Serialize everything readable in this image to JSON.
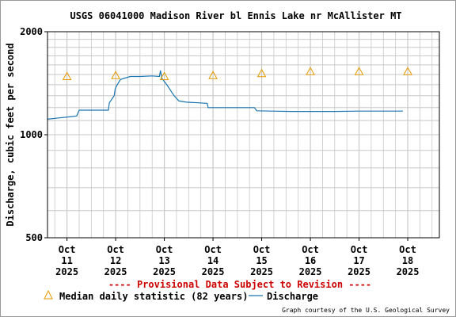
{
  "chart_data": {
    "type": "line",
    "title": "USGS 06041000 Madison River bl Ennis Lake nr McAllister MT",
    "ylabel": "Discharge, cubic feet per second",
    "xlabel": "",
    "y_scale": "log",
    "ylim": [
      500,
      2000
    ],
    "y_ticks": [
      {
        "value": 500,
        "label": "500"
      },
      {
        "value": 1000,
        "label": "1000"
      },
      {
        "value": 2000,
        "label": "2000"
      }
    ],
    "x_range_days": [
      10.6,
      18.65
    ],
    "x_ticks": [
      {
        "day": 11,
        "label": [
          "Oct",
          "11",
          "2025"
        ]
      },
      {
        "day": 12,
        "label": [
          "Oct",
          "12",
          "2025"
        ]
      },
      {
        "day": 13,
        "label": [
          "Oct",
          "13",
          "2025"
        ]
      },
      {
        "day": 14,
        "label": [
          "Oct",
          "14",
          "2025"
        ]
      },
      {
        "day": 15,
        "label": [
          "Oct",
          "15",
          "2025"
        ]
      },
      {
        "day": 16,
        "label": [
          "Oct",
          "16",
          "2025"
        ]
      },
      {
        "day": 17,
        "label": [
          "Oct",
          "17",
          "2025"
        ]
      },
      {
        "day": 18,
        "label": [
          "Oct",
          "18",
          "2025"
        ]
      }
    ],
    "grid": true,
    "series": [
      {
        "name": "Discharge",
        "kind": "line",
        "color": "#1a75b0",
        "points": [
          [
            10.6,
            1110
          ],
          [
            10.85,
            1120
          ],
          [
            11.1,
            1130
          ],
          [
            11.2,
            1135
          ],
          [
            11.25,
            1180
          ],
          [
            11.55,
            1180
          ],
          [
            11.75,
            1180
          ],
          [
            11.85,
            1180
          ],
          [
            11.87,
            1240
          ],
          [
            11.97,
            1300
          ],
          [
            11.99,
            1360
          ],
          [
            12.02,
            1390
          ],
          [
            12.1,
            1450
          ],
          [
            12.3,
            1480
          ],
          [
            12.5,
            1480
          ],
          [
            12.75,
            1485
          ],
          [
            12.9,
            1480
          ],
          [
            12.92,
            1540
          ],
          [
            12.95,
            1460
          ],
          [
            13.05,
            1400
          ],
          [
            13.2,
            1300
          ],
          [
            13.3,
            1255
          ],
          [
            13.45,
            1245
          ],
          [
            13.7,
            1240
          ],
          [
            13.88,
            1235
          ],
          [
            13.9,
            1200
          ],
          [
            14.4,
            1200
          ],
          [
            14.55,
            1200
          ],
          [
            14.85,
            1200
          ],
          [
            14.9,
            1175
          ],
          [
            15.2,
            1172
          ],
          [
            15.6,
            1170
          ],
          [
            16.0,
            1170
          ],
          [
            16.5,
            1170
          ],
          [
            17.0,
            1172
          ],
          [
            17.5,
            1172
          ],
          [
            17.9,
            1172
          ]
        ]
      },
      {
        "name": "Median daily statistic (82 years)",
        "kind": "marker",
        "marker": "triangle",
        "color": "#e69a00",
        "points": [
          [
            11.0,
            1480
          ],
          [
            12.0,
            1490
          ],
          [
            13.0,
            1480
          ],
          [
            14.0,
            1490
          ],
          [
            15.0,
            1510
          ],
          [
            16.0,
            1530
          ],
          [
            17.0,
            1530
          ],
          [
            18.0,
            1530
          ]
        ]
      }
    ]
  },
  "provisional_note": "---- Provisional Data Subject to Revision ----",
  "legend": {
    "median_label": "Median daily statistic (82 years)",
    "discharge_label": "Discharge"
  },
  "credit": "Graph courtesy of the U.S. Geological Survey",
  "colors": {
    "discharge": "#1a75b0",
    "median": "#e69a00",
    "provisional": "#cc0000",
    "grid": "#c8c8c8",
    "frame": "#9a9a9a"
  }
}
